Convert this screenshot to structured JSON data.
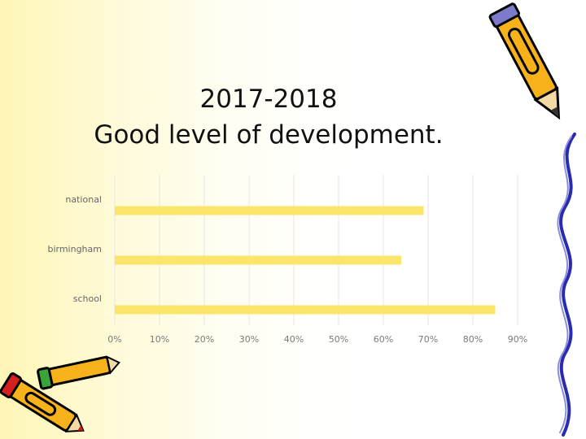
{
  "slide": {
    "title_line1": "2017-2018",
    "title_line2": "Good level of development."
  },
  "chart_data": {
    "type": "bar",
    "orientation": "horizontal",
    "title": "2017-2018 Good level of development.",
    "categories": [
      "national",
      "birmingham",
      "school"
    ],
    "values": [
      0.69,
      0.64,
      0.85
    ],
    "xlim": [
      0,
      0.9
    ],
    "xticks": [
      0,
      0.1,
      0.2,
      0.3,
      0.4,
      0.5,
      0.6,
      0.7,
      0.8,
      0.9
    ],
    "xtick_labels": [
      "0%",
      "10%",
      "20%",
      "30%",
      "40%",
      "50%",
      "60%",
      "70%",
      "80%",
      "90%"
    ],
    "grid": true,
    "bar_color": "#fbe56a",
    "grid_color": "#e6e6e6"
  },
  "decorations": {
    "top_right": "pencil-icon",
    "bottom_left": "pencils-icon",
    "right_edge": "squiggle-line"
  }
}
